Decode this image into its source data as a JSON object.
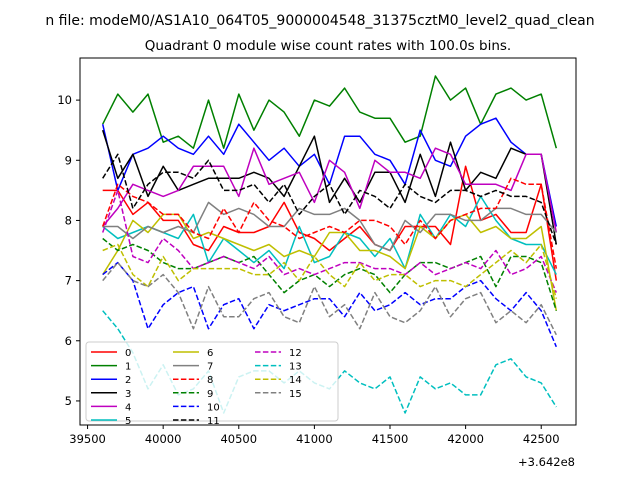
{
  "chart_data": {
    "type": "line",
    "suptitle": "n file: modeM0/AS1A10_064T05_9000004548_31375cztM0_level2_quad_clean",
    "title": "Quadrant 0 module wise count rates with 100.0s bins.",
    "xlabel": "",
    "ylabel": "",
    "x_offset_label": "+3.642e8",
    "xlim": [
      39450,
      42730
    ],
    "ylim": [
      4.6,
      10.7
    ],
    "x_ticks": [
      39500,
      40000,
      40500,
      41000,
      41500,
      42000,
      42500
    ],
    "y_ticks": [
      5,
      6,
      7,
      8,
      9,
      10
    ],
    "x": [
      39600,
      39700,
      39800,
      39900,
      40000,
      40100,
      40200,
      40300,
      40400,
      40500,
      40600,
      40700,
      40800,
      40900,
      41000,
      41100,
      41200,
      41300,
      41400,
      41500,
      41600,
      41700,
      41800,
      41900,
      42000,
      42100,
      42200,
      42300,
      42400,
      42500,
      42600
    ],
    "legend_position": "lower left",
    "legend_columns": 3,
    "grid": false,
    "series": [
      {
        "name": "0",
        "color": "#ff0000",
        "dash": "solid",
        "values": [
          8.5,
          8.5,
          8.1,
          8.3,
          8.0,
          8.0,
          7.6,
          7.5,
          7.9,
          7.8,
          7.8,
          7.9,
          8.3,
          7.8,
          7.7,
          7.5,
          7.7,
          7.9,
          7.6,
          7.5,
          7.9,
          7.9,
          7.9,
          7.6,
          8.9,
          8.0,
          8.1,
          7.8,
          7.8,
          8.6,
          7.0
        ]
      },
      {
        "name": "1",
        "color": "#008000",
        "dash": "solid",
        "values": [
          9.6,
          10.1,
          9.8,
          10.1,
          9.3,
          9.4,
          9.2,
          10.0,
          9.2,
          10.1,
          9.5,
          10.0,
          9.8,
          9.4,
          10.0,
          9.9,
          10.2,
          9.8,
          9.7,
          9.7,
          9.3,
          9.4,
          10.4,
          10.0,
          10.2,
          9.6,
          10.1,
          10.2,
          10.0,
          10.1,
          9.2
        ]
      },
      {
        "name": "2",
        "color": "#0000ff",
        "dash": "solid",
        "values": [
          9.6,
          8.5,
          9.1,
          9.2,
          9.4,
          9.2,
          9.1,
          9.4,
          9.1,
          9.6,
          9.3,
          9.0,
          9.2,
          8.9,
          9.1,
          8.6,
          9.4,
          9.4,
          9.1,
          9.0,
          8.6,
          9.5,
          9.0,
          8.9,
          9.4,
          9.6,
          9.7,
          9.3,
          9.1,
          9.1,
          7.9
        ]
      },
      {
        "name": "3",
        "color": "#000000",
        "dash": "solid",
        "values": [
          9.5,
          8.7,
          9.1,
          8.4,
          8.9,
          8.5,
          8.6,
          8.7,
          8.7,
          8.7,
          8.8,
          8.7,
          8.4,
          8.9,
          9.4,
          8.3,
          8.7,
          8.3,
          8.8,
          8.8,
          8.3,
          9.1,
          8.4,
          9.3,
          8.5,
          8.8,
          8.7,
          9.2,
          9.1,
          9.1,
          7.6
        ]
      },
      {
        "name": "4",
        "color": "#bf00bf",
        "dash": "solid",
        "values": [
          7.9,
          8.2,
          8.6,
          8.5,
          8.4,
          8.5,
          8.9,
          8.9,
          8.9,
          8.4,
          9.2,
          8.6,
          8.7,
          8.8,
          8.3,
          9.0,
          8.8,
          8.2,
          9.0,
          8.8,
          8.8,
          8.7,
          9.2,
          9.1,
          8.6,
          8.6,
          8.6,
          8.5,
          9.1,
          9.1,
          7.8
        ]
      },
      {
        "name": "5",
        "color": "#00bfbf",
        "dash": "solid",
        "values": [
          7.9,
          7.7,
          7.8,
          7.9,
          7.8,
          7.7,
          8.1,
          7.3,
          7.7,
          7.5,
          7.3,
          7.5,
          7.2,
          7.9,
          7.3,
          7.4,
          7.8,
          7.7,
          7.4,
          7.7,
          7.2,
          8.1,
          7.7,
          8.1,
          7.9,
          8.4,
          8.0,
          7.7,
          7.6,
          7.6,
          7.1
        ]
      },
      {
        "name": "6",
        "color": "#bfbf00",
        "dash": "solid",
        "values": [
          7.1,
          7.5,
          8.0,
          7.8,
          8.1,
          8.1,
          7.7,
          7.8,
          7.7,
          7.6,
          7.5,
          7.6,
          7.4,
          7.5,
          7.4,
          7.8,
          7.8,
          7.5,
          7.5,
          7.4,
          7.2,
          7.9,
          7.7,
          8.0,
          8.1,
          7.8,
          7.9,
          7.7,
          7.7,
          7.9,
          6.5
        ]
      },
      {
        "name": "7",
        "color": "#808080",
        "dash": "solid",
        "values": [
          7.9,
          7.9,
          7.7,
          7.9,
          7.8,
          7.9,
          7.8,
          8.3,
          8.1,
          8.2,
          8.1,
          7.9,
          7.9,
          8.2,
          8.1,
          8.1,
          8.2,
          8.0,
          7.6,
          7.5,
          8.0,
          7.8,
          8.1,
          8.1,
          8.0,
          8.0,
          8.2,
          8.2,
          8.1,
          8.1,
          7.8
        ]
      },
      {
        "name": "8",
        "color": "#ff0000",
        "dash": "dashed",
        "values": [
          7.9,
          8.6,
          8.4,
          8.3,
          8.1,
          8.1,
          7.8,
          7.7,
          8.2,
          7.8,
          8.3,
          8.0,
          7.9,
          7.7,
          7.8,
          7.9,
          7.8,
          8.0,
          8.0,
          7.9,
          7.6,
          8.0,
          7.7,
          8.0,
          8.1,
          8.2,
          8.2,
          8.7,
          8.6,
          8.6,
          7.2
        ]
      },
      {
        "name": "9",
        "color": "#008000",
        "dash": "dashed",
        "values": [
          7.7,
          7.5,
          7.6,
          7.5,
          7.3,
          7.2,
          7.2,
          7.3,
          7.4,
          7.3,
          7.4,
          7.1,
          6.8,
          7.0,
          7.1,
          6.9,
          7.1,
          7.2,
          7.1,
          6.8,
          7.1,
          7.3,
          7.3,
          7.2,
          7.3,
          7.4,
          6.9,
          7.4,
          7.4,
          7.3,
          6.5
        ]
      },
      {
        "name": "10",
        "color": "#0000ff",
        "dash": "dashed",
        "values": [
          7.1,
          7.3,
          7.0,
          6.2,
          6.6,
          6.8,
          6.9,
          6.2,
          6.6,
          6.7,
          6.2,
          6.6,
          6.5,
          6.6,
          6.7,
          6.7,
          6.4,
          6.8,
          6.5,
          6.6,
          6.8,
          6.6,
          6.7,
          6.7,
          6.9,
          7.0,
          6.7,
          6.5,
          6.8,
          6.5,
          5.9
        ]
      },
      {
        "name": "11",
        "color": "#000000",
        "dash": "dashed",
        "values": [
          8.7,
          9.1,
          8.2,
          8.6,
          8.8,
          8.8,
          8.7,
          9.0,
          8.5,
          8.5,
          8.6,
          8.3,
          8.6,
          8.1,
          8.4,
          8.6,
          8.1,
          8.5,
          8.4,
          8.2,
          8.6,
          8.4,
          8.3,
          8.5,
          8.5,
          8.4,
          8.5,
          8.4,
          8.4,
          8.3,
          7.6
        ]
      },
      {
        "name": "12",
        "color": "#bf00bf",
        "dash": "dashed",
        "values": [
          7.8,
          8.5,
          7.4,
          7.3,
          7.7,
          7.5,
          7.2,
          7.3,
          7.4,
          7.3,
          7.2,
          7.4,
          7.1,
          7.2,
          7.1,
          7.2,
          7.3,
          7.3,
          7.2,
          7.2,
          7.1,
          7.3,
          7.1,
          7.2,
          7.3,
          7.2,
          7.5,
          7.1,
          7.2,
          7.4,
          6.8
        ]
      },
      {
        "name": "13",
        "color": "#00bfbf",
        "dash": "dashed",
        "values": [
          6.5,
          6.2,
          5.8,
          5.2,
          5.6,
          5.1,
          5.2,
          5.5,
          4.8,
          5.4,
          5.5,
          5.5,
          5.3,
          5.5,
          5.3,
          5.2,
          5.5,
          5.3,
          5.2,
          5.4,
          4.8,
          5.4,
          5.2,
          5.3,
          5.1,
          5.1,
          5.6,
          5.7,
          5.4,
          5.3,
          4.9
        ]
      },
      {
        "name": "14",
        "color": "#bfbf00",
        "dash": "dashed",
        "values": [
          7.5,
          7.6,
          7.1,
          6.9,
          7.4,
          7.0,
          7.2,
          7.2,
          7.2,
          7.2,
          7.1,
          7.1,
          7.3,
          7.0,
          7.4,
          7.1,
          6.9,
          7.3,
          7.0,
          7.1,
          7.1,
          6.9,
          7.0,
          7.0,
          6.9,
          7.1,
          7.3,
          7.5,
          7.3,
          7.6,
          6.7
        ]
      },
      {
        "name": "15",
        "color": "#808080",
        "dash": "dashed",
        "values": [
          7.0,
          7.3,
          7.0,
          6.9,
          7.1,
          6.8,
          6.2,
          6.9,
          6.4,
          6.4,
          6.7,
          6.8,
          6.4,
          6.3,
          6.9,
          6.4,
          6.6,
          6.2,
          6.8,
          6.4,
          6.3,
          6.5,
          6.9,
          6.4,
          6.7,
          6.8,
          6.3,
          6.5,
          6.3,
          6.6,
          6.1
        ]
      }
    ]
  }
}
